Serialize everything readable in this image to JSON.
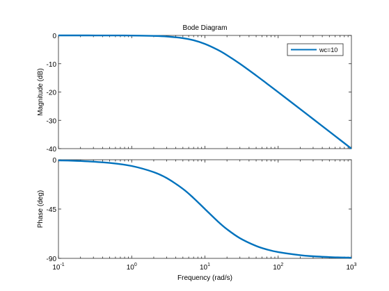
{
  "chart_data": [
    {
      "type": "line",
      "title": "Bode Diagram",
      "xlabel": "",
      "ylabel": "Magnitude (dB)",
      "xscale": "log",
      "xlim": [
        0.1,
        1000
      ],
      "ylim": [
        -40,
        0
      ],
      "yticks": [
        "0",
        "-10",
        "-20",
        "-30",
        "-40"
      ],
      "legend_position": "top-right",
      "grid": false,
      "series": [
        {
          "name": "wc=10",
          "color": "#0072BD",
          "x": [
            0.1,
            0.2,
            0.5,
            1,
            2,
            3,
            5,
            7,
            10,
            15,
            20,
            30,
            50,
            70,
            100,
            200,
            300,
            500,
            700,
            1000
          ],
          "y": [
            0.0,
            -0.002,
            -0.01,
            -0.04,
            -0.17,
            -0.37,
            -0.97,
            -1.71,
            -3.01,
            -5.12,
            -6.99,
            -10.0,
            -14.15,
            -17.0,
            -20.04,
            -26.03,
            -29.54,
            -33.98,
            -36.9,
            -40.0
          ]
        }
      ]
    },
    {
      "type": "line",
      "title": "",
      "xlabel": "Frequency  (rad/s)",
      "ylabel": "Phase (deg)",
      "xscale": "log",
      "xlim": [
        0.1,
        1000
      ],
      "ylim": [
        -90,
        0
      ],
      "yticks": [
        "0",
        "-45",
        "-90"
      ],
      "xticks": [
        {
          "base": "10",
          "exp": "-1"
        },
        {
          "base": "10",
          "exp": "0"
        },
        {
          "base": "10",
          "exp": "1"
        },
        {
          "base": "10",
          "exp": "2"
        },
        {
          "base": "10",
          "exp": "3"
        }
      ],
      "grid": false,
      "series": [
        {
          "color": "#0072BD",
          "x": [
            0.1,
            0.2,
            0.5,
            1,
            2,
            3,
            5,
            7,
            10,
            15,
            20,
            30,
            50,
            70,
            100,
            200,
            300,
            500,
            700,
            1000
          ],
          "y": [
            -0.57,
            -1.15,
            -2.86,
            -5.71,
            -11.31,
            -16.7,
            -26.57,
            -34.99,
            -45.0,
            -56.31,
            -63.43,
            -71.57,
            -78.69,
            -81.87,
            -84.29,
            -87.14,
            -88.09,
            -88.85,
            -89.18,
            -89.43
          ]
        }
      ]
    }
  ]
}
